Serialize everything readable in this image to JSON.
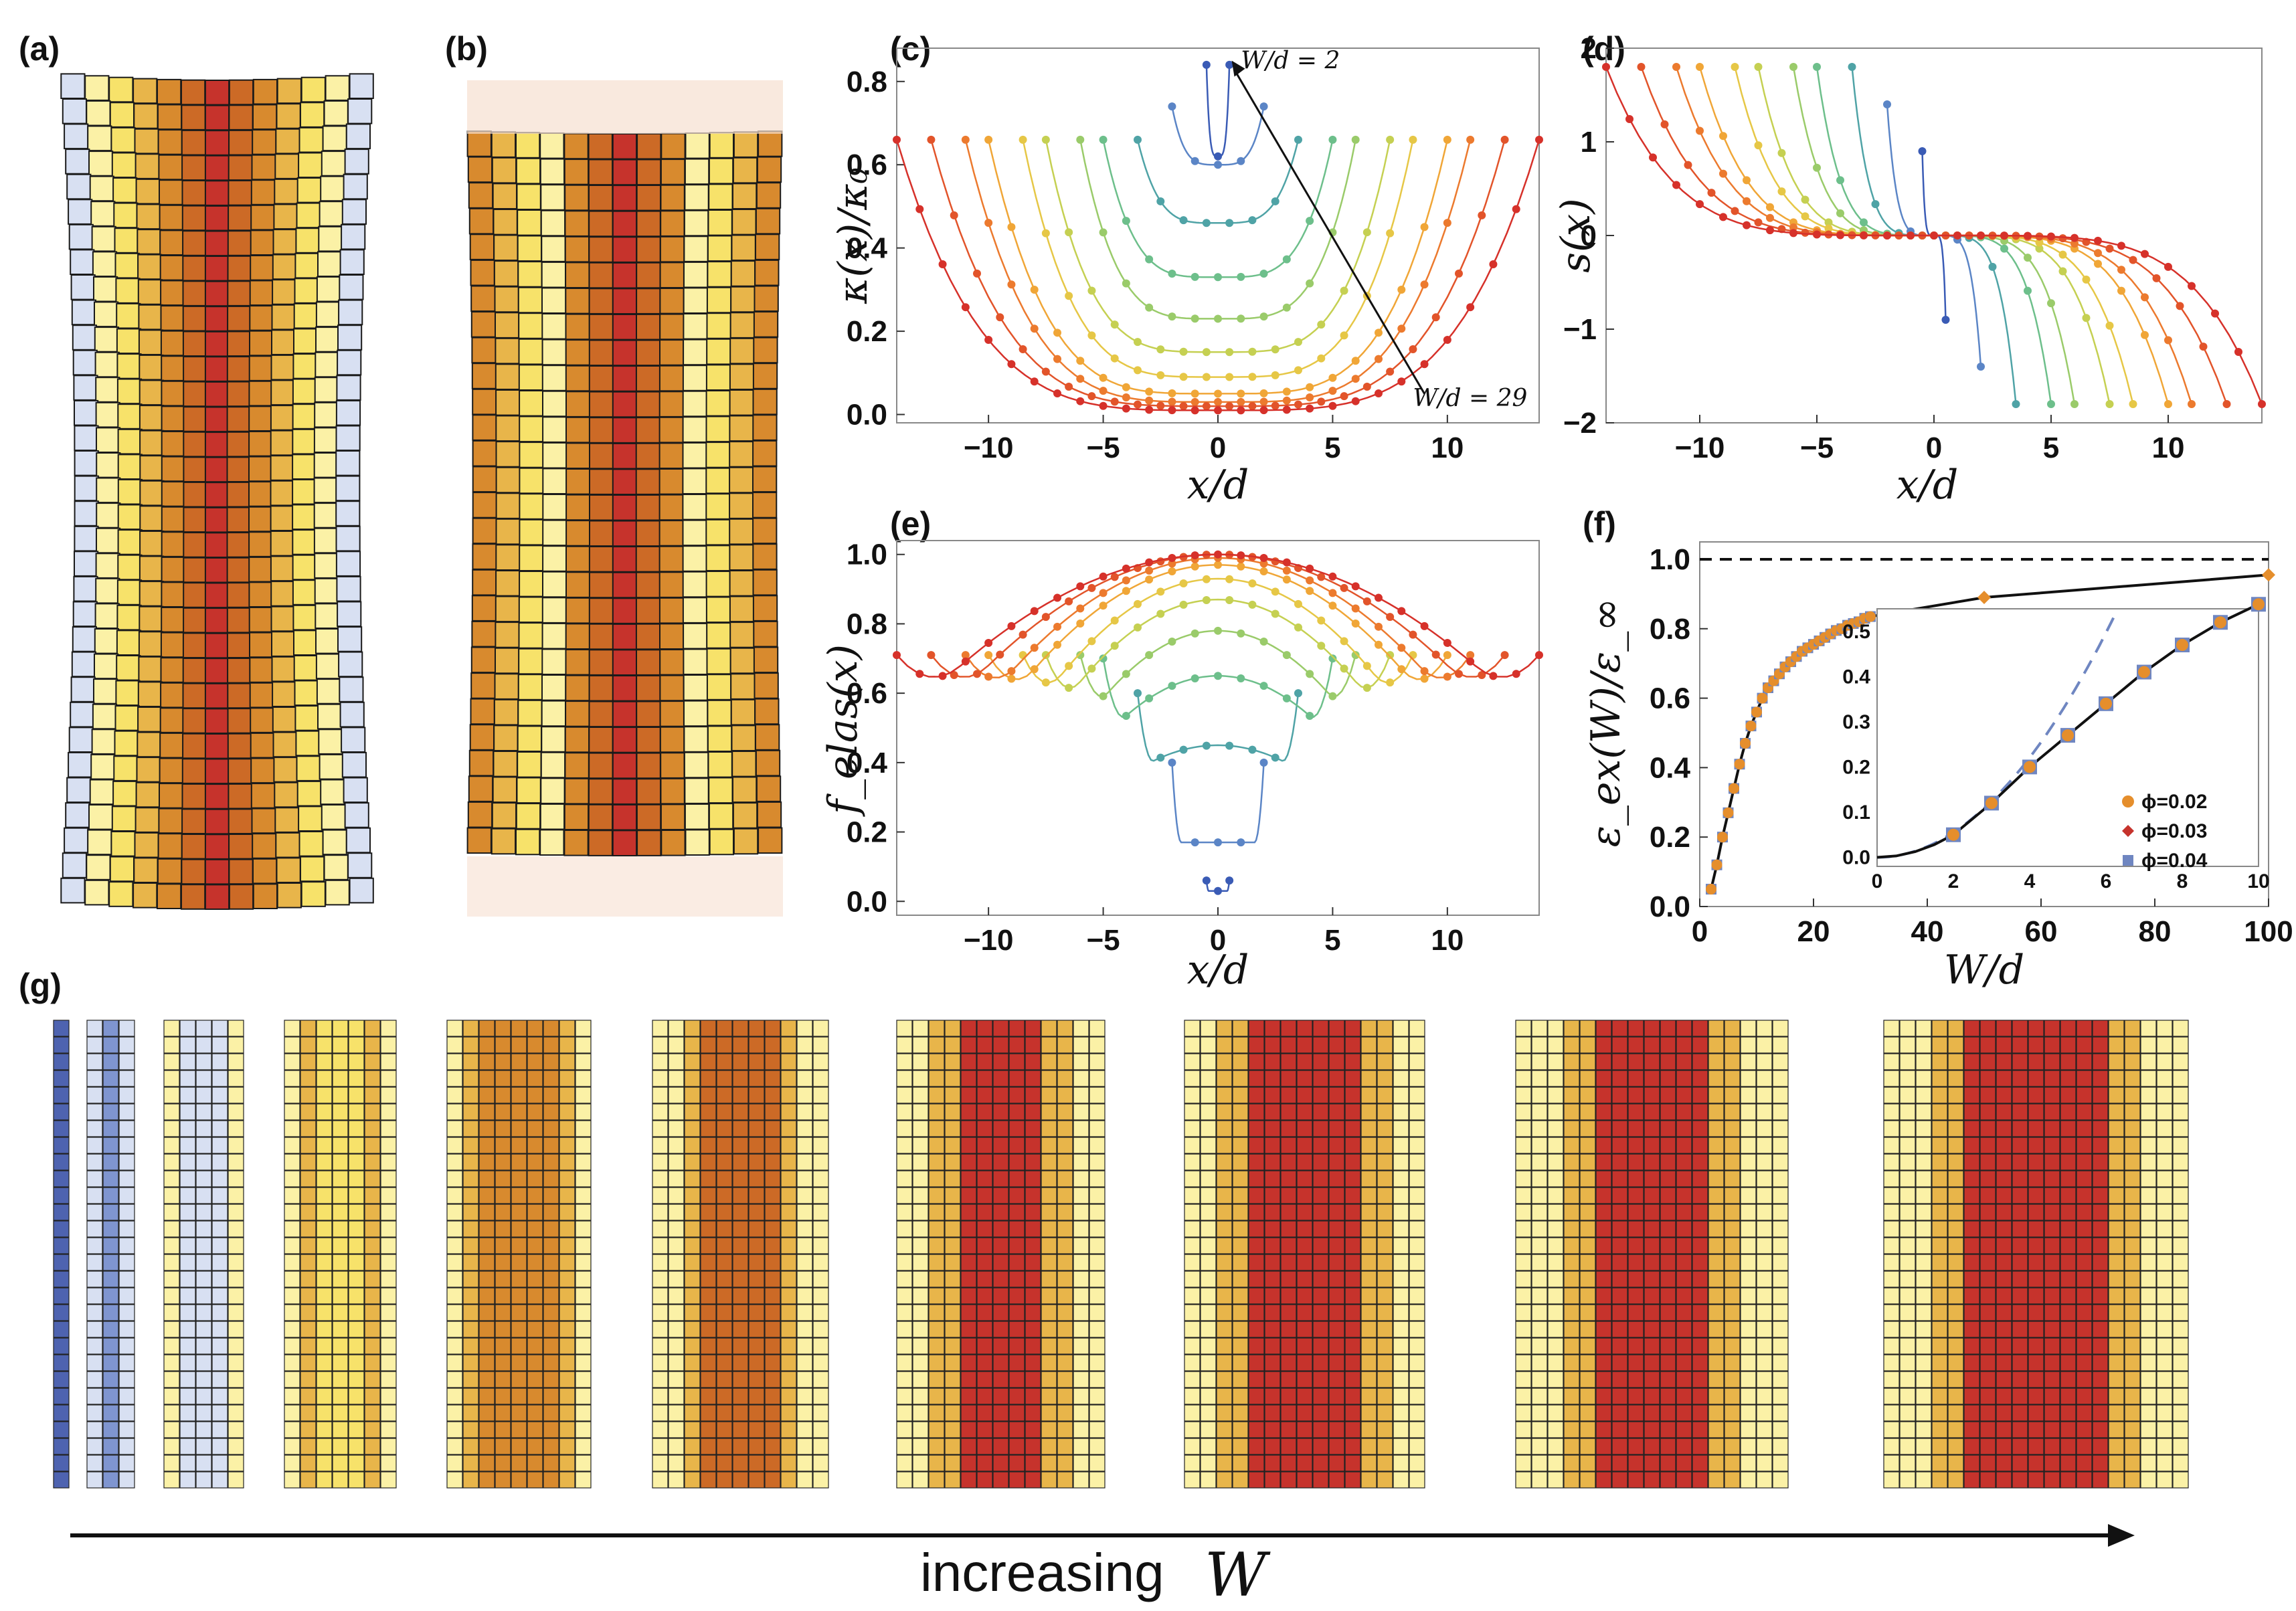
{
  "panel_labels": {
    "a": "(a)",
    "b": "(b)",
    "c": "(c)",
    "d": "(d)",
    "e": "(e)",
    "f": "(f)",
    "g": "(g)"
  },
  "colors": {
    "blue_dark": "#4e63b0",
    "blue_mid": "#7f95d0",
    "blue_light": "#d8e0f2",
    "white": "#fdfbf0",
    "pale_yellow": "#fbf1a6",
    "yellow": "#f7e26a",
    "gold": "#e8b54a",
    "orange": "#d88a2e",
    "dark_orange": "#cc6a26",
    "red": "#c6332c",
    "series": [
      "#3a5bb5",
      "#5b85c6",
      "#4fa3a6",
      "#6dbf8b",
      "#9acb6a",
      "#c5d052",
      "#e6c746",
      "#f0a637",
      "#ec7a2e",
      "#e2542a",
      "#d6312a"
    ]
  },
  "sheet_a": {
    "rows": 33,
    "cols": 13,
    "stripes": [
      "#d8e0f2",
      "#fbf1a6",
      "#f7e26a",
      "#e8b54a",
      "#d88a2e",
      "#cc6a26",
      "#c6332c",
      "#cc6a26",
      "#d88a2e",
      "#e8b54a",
      "#f7e26a",
      "#fbf1a6",
      "#d8e0f2"
    ]
  },
  "sheet_b": {
    "rows": 28,
    "cols": 13,
    "stripes": [
      "#d88a2e",
      "#e8b54a",
      "#f7e26a",
      "#fbf1a6",
      "#d88a2e",
      "#cc6a26",
      "#c6332c",
      "#cc6a26",
      "#d88a2e",
      "#fbf1a6",
      "#f7e26a",
      "#e8b54a",
      "#d88a2e"
    ]
  },
  "strip_g": {
    "label": "increasing",
    "label_var": "W",
    "sheets": [
      {
        "cols": 1,
        "center_color": "#4e63b0",
        "edge_color": "#4e63b0"
      },
      {
        "cols": 3,
        "center_color": "#7f95d0",
        "edge_color": "#d8e0f2"
      },
      {
        "cols": 5,
        "center_color": "#d8e0f2",
        "edge_color": "#fbf1a6"
      },
      {
        "cols": 7,
        "center_color": "#f7e26a",
        "edge_color": "#fbf1a6"
      },
      {
        "cols": 9,
        "center_color": "#d88a2e",
        "edge_color": "#fbf1a6"
      },
      {
        "cols": 11,
        "center_color": "#cc6a26",
        "edge_color": "#fbf1a6"
      },
      {
        "cols": 13,
        "center_color": "#c6332c",
        "edge_color": "#fbf1a6"
      },
      {
        "cols": 15,
        "center_color": "#c6332c",
        "edge_color": "#fbf1a6"
      },
      {
        "cols": 17,
        "center_color": "#c6332c",
        "edge_color": "#fbf1a6"
      },
      {
        "cols": 19,
        "center_color": "#c6332c",
        "edge_color": "#fbf1a6"
      }
    ]
  },
  "chart_data": [
    {
      "id": "c",
      "type": "line",
      "title": "",
      "xlabel": "x/d",
      "ylabel": "κ(x)/κ₀",
      "xlim": [
        -14,
        14
      ],
      "ylim": [
        -0.02,
        0.88
      ],
      "xticks": [
        -10,
        -5,
        0,
        5,
        10
      ],
      "yticks": [
        0.0,
        0.2,
        0.4,
        0.6,
        0.8
      ],
      "xtick_labels": [
        "−10",
        "−5",
        "0",
        "5",
        "10"
      ],
      "ytick_labels": [
        "0.0",
        "0.2",
        "0.4",
        "0.6",
        "0.8"
      ],
      "annotations": [
        "W/d = 2",
        "W/d = 29"
      ],
      "series_note": "one curve per W/d; endpoints at ±W/2",
      "series": [
        {
          "name": "W/d=2",
          "halfwidth": 0.5,
          "center": 0.62,
          "edge": 0.84
        },
        {
          "name": "W/d=5",
          "halfwidth": 2.0,
          "center": 0.6,
          "edge": 0.74
        },
        {
          "name": "W/d=8",
          "halfwidth": 3.5,
          "center": 0.46,
          "edge": 0.66
        },
        {
          "name": "W/d=11",
          "halfwidth": 5.0,
          "center": 0.33,
          "edge": 0.66
        },
        {
          "name": "W/d=13",
          "halfwidth": 6.0,
          "center": 0.23,
          "edge": 0.66
        },
        {
          "name": "W/d=16",
          "halfwidth": 7.5,
          "center": 0.15,
          "edge": 0.66
        },
        {
          "name": "W/d=18",
          "halfwidth": 8.5,
          "center": 0.09,
          "edge": 0.66
        },
        {
          "name": "W/d=21",
          "halfwidth": 10.0,
          "center": 0.05,
          "edge": 0.66
        },
        {
          "name": "W/d=23",
          "halfwidth": 11.0,
          "center": 0.03,
          "edge": 0.66
        },
        {
          "name": "W/d=26",
          "halfwidth": 12.5,
          "center": 0.02,
          "edge": 0.66
        },
        {
          "name": "W/d=29",
          "halfwidth": 14.0,
          "center": 0.01,
          "edge": 0.66
        }
      ]
    },
    {
      "id": "d",
      "type": "line",
      "title": "",
      "xlabel": "x/d",
      "ylabel": "s(x)",
      "xlim": [
        -14,
        14
      ],
      "ylim": [
        -2,
        2
      ],
      "xticks": [
        -10,
        -5,
        0,
        5,
        10
      ],
      "yticks": [
        -2,
        -1,
        0,
        1,
        2
      ],
      "xtick_labels": [
        "−10",
        "−5",
        "0",
        "5",
        "10"
      ],
      "ytick_labels": [
        "−2",
        "−1",
        "0",
        "1",
        "2"
      ],
      "series": [
        {
          "name": "W/d=2",
          "halfwidth": 0.5,
          "edge": 0.9
        },
        {
          "name": "W/d=5",
          "halfwidth": 2.0,
          "edge": 1.4
        },
        {
          "name": "W/d=8",
          "halfwidth": 3.5,
          "edge": 1.8
        },
        {
          "name": "W/d=11",
          "halfwidth": 5.0,
          "edge": 1.8
        },
        {
          "name": "W/d=13",
          "halfwidth": 6.0,
          "edge": 1.8
        },
        {
          "name": "W/d=16",
          "halfwidth": 7.5,
          "edge": 1.8
        },
        {
          "name": "W/d=18",
          "halfwidth": 8.5,
          "edge": 1.8
        },
        {
          "name": "W/d=21",
          "halfwidth": 10.0,
          "edge": 1.8
        },
        {
          "name": "W/d=23",
          "halfwidth": 11.0,
          "edge": 1.8
        },
        {
          "name": "W/d=26",
          "halfwidth": 12.5,
          "edge": 1.8
        },
        {
          "name": "W/d=29",
          "halfwidth": 14.0,
          "edge": 1.8
        }
      ]
    },
    {
      "id": "e",
      "type": "line",
      "title": "",
      "xlabel": "x/d",
      "ylabel": "f_elas(x)",
      "xlim": [
        -14,
        14
      ],
      "ylim": [
        -0.04,
        1.04
      ],
      "xticks": [
        -10,
        -5,
        0,
        5,
        10
      ],
      "yticks": [
        0.0,
        0.2,
        0.4,
        0.6,
        0.8,
        1.0
      ],
      "xtick_labels": [
        "−10",
        "−5",
        "0",
        "5",
        "10"
      ],
      "ytick_labels": [
        "0.0",
        "0.2",
        "0.4",
        "0.6",
        "0.8",
        "1.0"
      ],
      "series": [
        {
          "name": "W/d=2",
          "halfwidth": 0.5,
          "center": 0.03,
          "edge": 0.06,
          "mn": 0.03
        },
        {
          "name": "W/d=5",
          "halfwidth": 2.0,
          "center": 0.17,
          "edge": 0.4,
          "mn": 0.17
        },
        {
          "name": "W/d=8",
          "halfwidth": 3.5,
          "center": 0.45,
          "edge": 0.6,
          "mn": 0.38
        },
        {
          "name": "W/d=11",
          "halfwidth": 5.0,
          "center": 0.65,
          "edge": 0.7,
          "mn": 0.47
        },
        {
          "name": "W/d=13",
          "halfwidth": 6.0,
          "center": 0.78,
          "edge": 0.71,
          "mn": 0.5
        },
        {
          "name": "W/d=16",
          "halfwidth": 7.5,
          "center": 0.87,
          "edge": 0.71,
          "mn": 0.5
        },
        {
          "name": "W/d=18",
          "halfwidth": 8.5,
          "center": 0.93,
          "edge": 0.71,
          "mn": 0.5
        },
        {
          "name": "W/d=21",
          "halfwidth": 10.0,
          "center": 0.97,
          "edge": 0.71,
          "mn": 0.5
        },
        {
          "name": "W/d=23",
          "halfwidth": 11.0,
          "center": 0.99,
          "edge": 0.71,
          "mn": 0.5
        },
        {
          "name": "W/d=26",
          "halfwidth": 12.5,
          "center": 1.0,
          "edge": 0.71,
          "mn": 0.5
        },
        {
          "name": "W/d=29",
          "halfwidth": 14.0,
          "center": 1.0,
          "edge": 0.71,
          "mn": 0.5
        }
      ]
    },
    {
      "id": "f",
      "type": "line",
      "title": "",
      "xlabel": "W/d",
      "ylabel": "ε_ex(W)/ε_∞",
      "xlim": [
        0,
        100
      ],
      "ylim": [
        0,
        1.05
      ],
      "xticks": [
        0,
        20,
        40,
        60,
        80,
        100
      ],
      "yticks": [
        0.0,
        0.2,
        0.4,
        0.6,
        0.8,
        1.0
      ],
      "xtick_labels": [
        "0",
        "20",
        "40",
        "60",
        "80",
        "100"
      ],
      "ytick_labels": [
        "0.0",
        "0.2",
        "0.4",
        "0.6",
        "0.8",
        "1.0"
      ],
      "reference_line": 1.0,
      "x": [
        2,
        3,
        4,
        5,
        6,
        7,
        8,
        9,
        10,
        11,
        12,
        13,
        14,
        15,
        16,
        17,
        18,
        19,
        20,
        21,
        22,
        23,
        24,
        25,
        26,
        27,
        28,
        29,
        30,
        50,
        100
      ],
      "y": [
        0.05,
        0.12,
        0.2,
        0.27,
        0.34,
        0.41,
        0.47,
        0.52,
        0.56,
        0.6,
        0.63,
        0.65,
        0.67,
        0.69,
        0.705,
        0.72,
        0.735,
        0.745,
        0.755,
        0.765,
        0.775,
        0.785,
        0.795,
        0.8,
        0.81,
        0.815,
        0.82,
        0.83,
        0.835,
        0.89,
        0.955
      ],
      "inset": {
        "xlim": [
          0,
          10
        ],
        "ylim": [
          -0.02,
          0.55
        ],
        "xticks": [
          0,
          2,
          4,
          6,
          8,
          10
        ],
        "yticks": [
          0.0,
          0.1,
          0.2,
          0.3,
          0.4,
          0.5
        ],
        "xtick_labels": [
          "0",
          "2",
          "4",
          "6",
          "8",
          "10"
        ],
        "ytick_labels": [
          "0.0",
          "0.1",
          "0.2",
          "0.3",
          "0.4",
          "0.5"
        ],
        "x": [
          2,
          3,
          4,
          5,
          6,
          7,
          8,
          9,
          10
        ],
        "y": [
          0.05,
          0.12,
          0.2,
          0.27,
          0.34,
          0.41,
          0.47,
          0.52,
          0.56
        ],
        "legend": [
          {
            "label": "ϕ=0.02",
            "color": "#e58e2c",
            "marker": "circle"
          },
          {
            "label": "ϕ=0.03",
            "color": "#c6332c",
            "marker": "diamond"
          },
          {
            "label": "ϕ=0.04",
            "color": "#6f86c1",
            "marker": "square"
          }
        ]
      }
    }
  ]
}
